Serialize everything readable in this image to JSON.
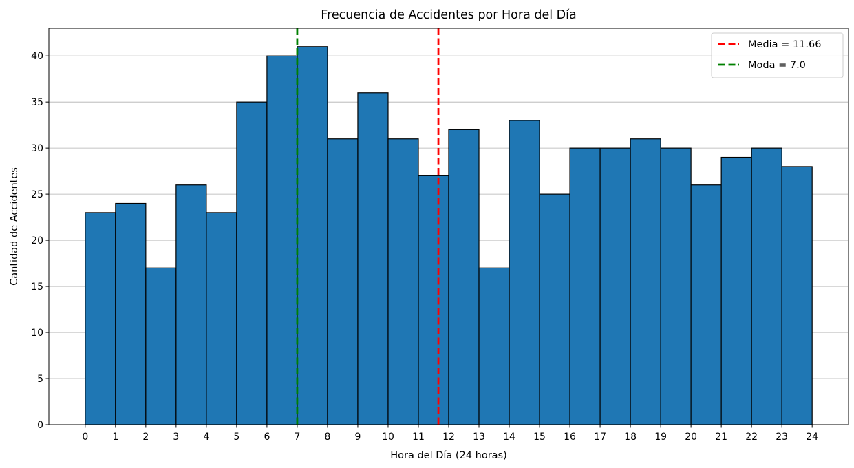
{
  "chart_data": {
    "type": "bar",
    "title": "Frecuencia de Accidentes por Hora del Día",
    "xlabel": "Hora del Día (24 horas)",
    "ylabel": "Cantidad de Accidentes",
    "bin_edges": [
      0,
      1,
      2,
      3,
      4,
      5,
      6,
      7,
      8,
      9,
      10,
      11,
      12,
      13,
      14,
      15,
      16,
      17,
      18,
      19,
      20,
      21,
      22,
      23,
      24
    ],
    "values": [
      23,
      24,
      17,
      26,
      23,
      35,
      40,
      41,
      31,
      36,
      31,
      27,
      32,
      17,
      33,
      25,
      30,
      30,
      31,
      30,
      26,
      29,
      30,
      28
    ],
    "xticks": [
      "0",
      "1",
      "2",
      "3",
      "4",
      "5",
      "6",
      "7",
      "8",
      "9",
      "10",
      "11",
      "12",
      "13",
      "14",
      "15",
      "16",
      "17",
      "18",
      "19",
      "20",
      "21",
      "22",
      "23",
      "24"
    ],
    "yticks": [
      "0",
      "5",
      "10",
      "15",
      "20",
      "25",
      "30",
      "35",
      "40"
    ],
    "xlim": [
      -1.2,
      25.2
    ],
    "ylim": [
      0,
      43
    ],
    "grid": "y",
    "bar_color": "#1f77b4",
    "edge_color": "#000000",
    "reference_lines": [
      {
        "label": "Media = 11.66",
        "x": 11.66,
        "color": "#ff0000",
        "style": "dashed"
      },
      {
        "label": "Moda = 7.0",
        "x": 7.0,
        "color": "#008000",
        "style": "dashed"
      }
    ],
    "legend_position": "top-right"
  }
}
